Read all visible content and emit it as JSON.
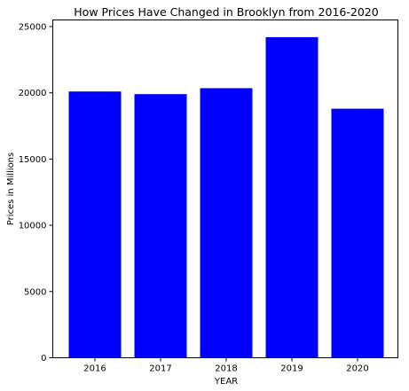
{
  "chart_data": {
    "type": "bar",
    "title": "How Prices Have Changed in Brooklyn from 2016-2020",
    "xlabel": "YEAR",
    "ylabel": "Prices in Millions",
    "categories": [
      "2016",
      "2017",
      "2018",
      "2019",
      "2020"
    ],
    "values": [
      20100,
      19900,
      20350,
      24200,
      18800
    ],
    "ylim": [
      0,
      25500
    ],
    "yticks": [
      0,
      5000,
      10000,
      15000,
      20000,
      25000
    ],
    "bar_color": "#0000ff",
    "grid": false,
    "legend": "none"
  }
}
